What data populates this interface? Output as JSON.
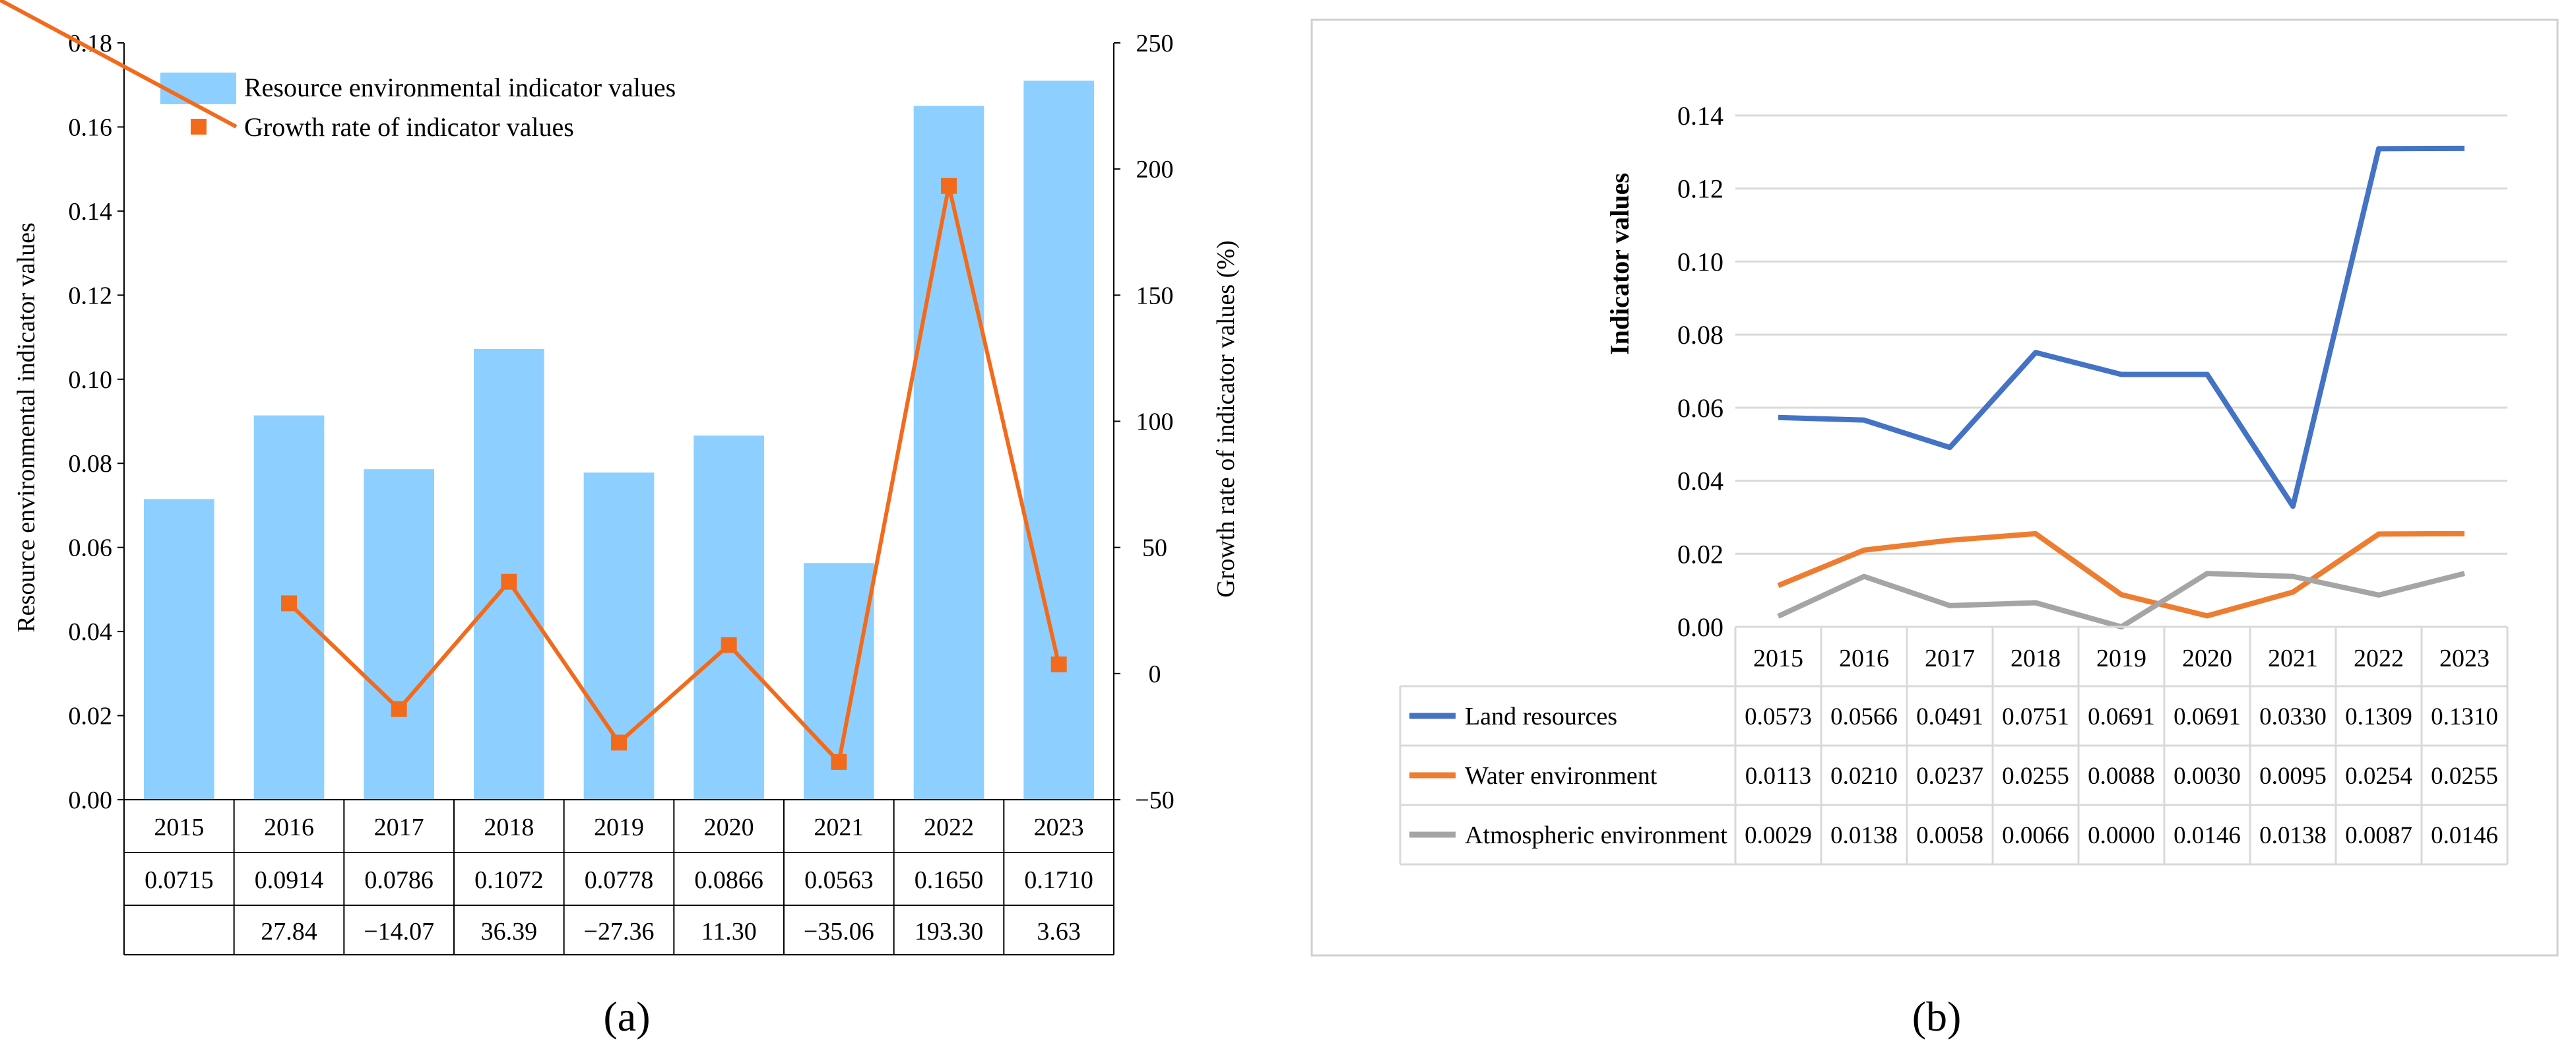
{
  "panel_labels": {
    "a": "(a)",
    "b": "(b)"
  },
  "colors": {
    "bar": "#8dd0ff",
    "growth_line": "#f26b1d",
    "land": "#4472c4",
    "water": "#ed7d31",
    "atmos": "#a5a5a5",
    "grid": "#d9d9d9",
    "axis": "#000000",
    "panel_border": "#d0d0d0"
  },
  "chart_data": [
    {
      "type": "bar",
      "panel": "a",
      "categories": [
        "2015",
        "2016",
        "2017",
        "2018",
        "2019",
        "2020",
        "2021",
        "2022",
        "2023"
      ],
      "series": [
        {
          "name": "Resource environmental indicator values",
          "axis": "left",
          "mark": "bar",
          "values": [
            0.0715,
            0.0914,
            0.0786,
            0.1072,
            0.0778,
            0.0866,
            0.0563,
            0.165,
            0.171
          ],
          "labels": [
            "0.0715",
            "0.0914",
            "0.0786",
            "0.1072",
            "0.0778",
            "0.0866",
            "0.0563",
            "0.1650",
            "0.1710"
          ]
        },
        {
          "name": "Growth rate of indicator values",
          "axis": "right",
          "mark": "line",
          "values": [
            null,
            27.84,
            -14.07,
            36.39,
            -27.36,
            11.3,
            -35.06,
            193.3,
            3.63
          ],
          "labels": [
            "",
            "27.84",
            "−14.07",
            "36.39",
            "−27.36",
            "11.30",
            "−35.06",
            "193.30",
            "3.63"
          ]
        }
      ],
      "ylabel": "Resource environmental indicator values",
      "y2label": "Growth rate of indicator values (%)",
      "ylim": [
        0,
        0.18
      ],
      "y2lim": [
        -50,
        250
      ],
      "yticks": [
        "0.00",
        "0.02",
        "0.04",
        "0.06",
        "0.08",
        "0.10",
        "0.12",
        "0.14",
        "0.16",
        "0.18"
      ],
      "y2ticks": [
        "−50",
        "0",
        "50",
        "100",
        "150",
        "200",
        "250"
      ],
      "legend": "top-left",
      "grid": false
    },
    {
      "type": "line",
      "panel": "b",
      "categories": [
        "2015",
        "2016",
        "2017",
        "2018",
        "2019",
        "2020",
        "2021",
        "2022",
        "2023"
      ],
      "series": [
        {
          "name": "Land resources",
          "values": [
            0.0573,
            0.0566,
            0.0491,
            0.0751,
            0.0691,
            0.0691,
            0.033,
            0.1309,
            0.131
          ],
          "labels": [
            "0.0573",
            "0.0566",
            "0.0491",
            "0.0751",
            "0.0691",
            "0.0691",
            "0.0330",
            "0.1309",
            "0.1310"
          ]
        },
        {
          "name": "Water environment",
          "values": [
            0.0113,
            0.021,
            0.0237,
            0.0255,
            0.0088,
            0.003,
            0.0095,
            0.0254,
            0.0255
          ],
          "labels": [
            "0.0113",
            "0.0210",
            "0.0237",
            "0.0255",
            "0.0088",
            "0.0030",
            "0.0095",
            "0.0254",
            "0.0255"
          ]
        },
        {
          "name": "Atmospheric environment",
          "values": [
            0.0029,
            0.0138,
            0.0058,
            0.0066,
            0.0,
            0.0146,
            0.0138,
            0.0087,
            0.0146
          ],
          "labels": [
            "0.0029",
            "0.0138",
            "0.0058",
            "0.0066",
            "0.0000",
            "0.0146",
            "0.0138",
            "0.0087",
            "0.0146"
          ]
        }
      ],
      "ylabel": "Indicator values",
      "ylim": [
        0,
        0.14
      ],
      "yticks": [
        "0.00",
        "0.02",
        "0.04",
        "0.06",
        "0.08",
        "0.10",
        "0.12",
        "0.14"
      ],
      "grid": true,
      "legend": "data-table"
    }
  ]
}
